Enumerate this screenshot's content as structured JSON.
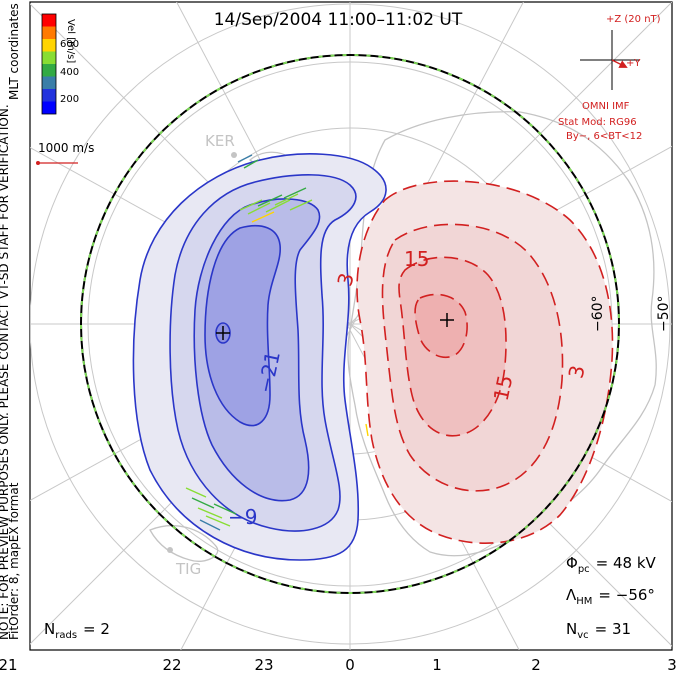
{
  "title": "14/Sep/2004 11:00–11:02 UT",
  "colorbar": {
    "label": "Vel [m/s]",
    "ticks": [
      "600",
      "400",
      "200"
    ],
    "colors": [
      "#ff0000",
      "#ff7a00",
      "#ffd400",
      "#88dd33",
      "#33aa44",
      "#3a7ea8",
      "#2233dd",
      "#0000ff"
    ]
  },
  "side_labels": {
    "coords": "MLT coordinates",
    "fitorder": "FitOrder: 8, mapEX format",
    "note": "NOTE: FOR PREVIEW PURPOSES ONLY. PLEASE CONTACT VT-SD STAFF FOR VERIFICATION."
  },
  "scale_vector": {
    "label": "1000 m/s"
  },
  "imf": {
    "z_label": "+Z (20 nT)",
    "y_label": "+Y",
    "source": "OMNI IMF",
    "model": "Stat Mod: RG96",
    "condition": "By−, 6<BT<12"
  },
  "stations": [
    "KER",
    "TIG"
  ],
  "lat_labels": [
    "−60°",
    "−50°"
  ],
  "contour_labels": {
    "negative": [
      "−21",
      "−9"
    ],
    "positive": [
      "3",
      "15",
      "15",
      "3"
    ]
  },
  "stats": {
    "phi_pc": {
      "label": "Φ",
      "sub": "pc",
      "value": "= 48 kV"
    },
    "lambda_hm": {
      "label": "Λ",
      "sub": "HM",
      "value": "= −56°"
    },
    "n_vc": {
      "label": "N",
      "sub": "vc",
      "value": "= 31"
    },
    "n_rads": {
      "label": "N",
      "sub": "rads",
      "value": "= 2"
    }
  },
  "mlt_ticks": [
    "21",
    "22",
    "23",
    "0",
    "1",
    "2",
    "3"
  ],
  "colors": {
    "negative_cell": "#2a36c8",
    "positive_cell": "#d22020",
    "hmb": "#000000",
    "hmb_dash": "#7ed957",
    "grid": "#c8c8c8",
    "coast": "#c4c4c4",
    "frame": "#000000"
  }
}
